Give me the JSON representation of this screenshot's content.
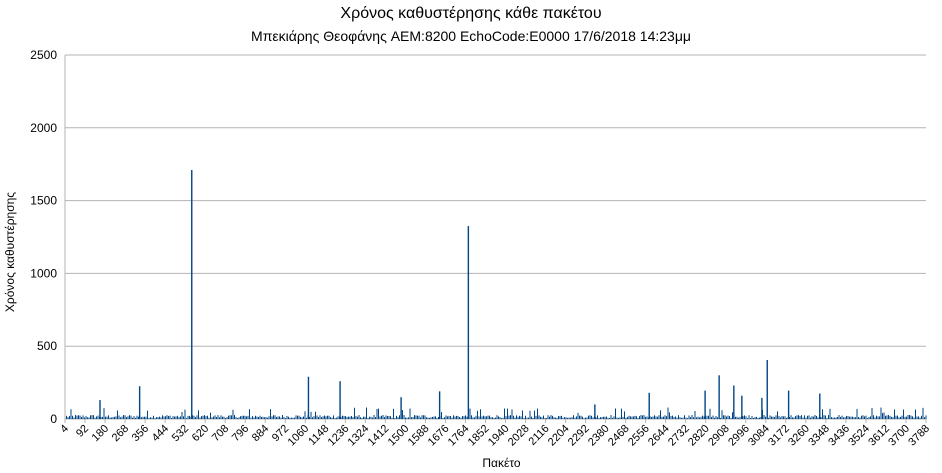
{
  "chart_data": {
    "type": "bar",
    "title": "Χρόνος καθυστέρησης κάθε πακέτου",
    "subtitle": "Μπεκιάρης Θεοφάνης AEM:8200 EchoCode:E0000 17/6/2018 14:23μμ",
    "xlabel": "Πακέτο",
    "ylabel": "Χρόνος καθυστέρησης",
    "ylim": [
      0,
      2500
    ],
    "yticks": [
      0,
      500,
      1000,
      1500,
      2000,
      2500
    ],
    "x_tick_labels": [
      "4",
      "92",
      "180",
      "268",
      "356",
      "444",
      "532",
      "620",
      "708",
      "796",
      "884",
      "972",
      "1060",
      "1148",
      "1236",
      "1324",
      "1412",
      "1500",
      "1588",
      "1676",
      "1764",
      "1852",
      "1940",
      "2028",
      "2116",
      "2204",
      "2292",
      "2380",
      "2468",
      "2556",
      "2644",
      "2732",
      "2820",
      "2908",
      "2996",
      "3084",
      "3172",
      "3260",
      "3348",
      "3436",
      "3524",
      "3612",
      "3700",
      "3788"
    ],
    "x_range": [
      4,
      3870
    ],
    "grid": "horizontal",
    "legend": "none",
    "bar_color": "#004586",
    "base_level": 20,
    "spikes": [
      {
        "x": 570,
        "value": 1710
      },
      {
        "x": 1812,
        "value": 1325
      },
      {
        "x": 3154,
        "value": 405
      },
      {
        "x": 1236,
        "value": 260
      },
      {
        "x": 2938,
        "value": 300
      },
      {
        "x": 336,
        "value": 225
      },
      {
        "x": 1094,
        "value": 290
      },
      {
        "x": 2624,
        "value": 180
      },
      {
        "x": 1683,
        "value": 190
      },
      {
        "x": 3004,
        "value": 230
      },
      {
        "x": 3250,
        "value": 195
      },
      {
        "x": 3390,
        "value": 175
      },
      {
        "x": 1510,
        "value": 150
      },
      {
        "x": 158,
        "value": 130
      },
      {
        "x": 2875,
        "value": 195
      },
      {
        "x": 3040,
        "value": 160
      },
      {
        "x": 3130,
        "value": 145
      },
      {
        "x": 2380,
        "value": 100
      }
    ]
  }
}
